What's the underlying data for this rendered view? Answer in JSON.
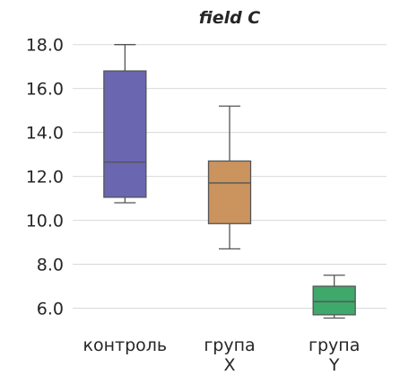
{
  "chart_data": {
    "type": "box",
    "title": "field C",
    "xlabel": "",
    "ylabel": "",
    "ylim": [
      5.0,
      18.6
    ],
    "yticks": [
      6.0,
      8.0,
      10.0,
      12.0,
      14.0,
      16.0,
      18.0
    ],
    "ytick_labels": [
      "6.0",
      "8.0",
      "10.0",
      "12.0",
      "14.0",
      "16.0",
      "18.0"
    ],
    "grid": true,
    "categories": [
      {
        "label_lines": [
          "контроль"
        ]
      },
      {
        "label_lines": [
          "група",
          "X"
        ]
      },
      {
        "label_lines": [
          "група",
          "Y"
        ]
      }
    ],
    "boxes": [
      {
        "whisker_low": 10.8,
        "q1": 11.05,
        "median": 12.65,
        "q3": 16.8,
        "whisker_high": 18.0,
        "color": "#6a66b0"
      },
      {
        "whisker_low": 8.7,
        "q1": 9.85,
        "median": 11.7,
        "q3": 12.7,
        "whisker_high": 15.2,
        "color": "#cb935e"
      },
      {
        "whisker_low": 5.55,
        "q1": 5.7,
        "median": 6.3,
        "q3": 7.0,
        "whisker_high": 7.5,
        "color": "#3fa86b"
      }
    ],
    "line_color": "#555555"
  }
}
